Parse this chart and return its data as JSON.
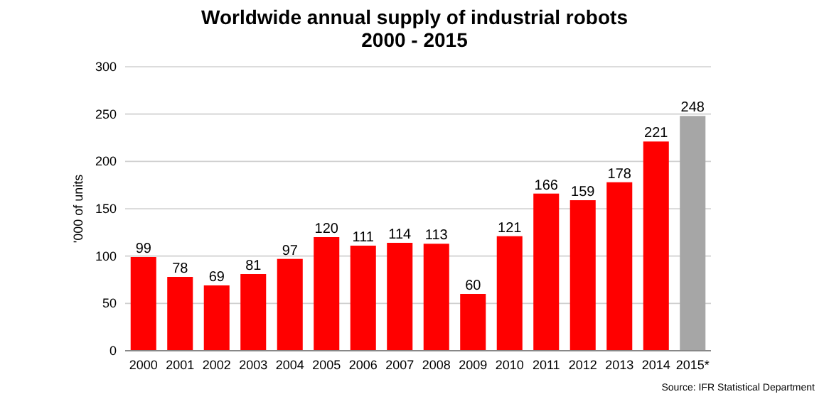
{
  "chart_data": {
    "type": "bar",
    "title": "Worldwide annual supply of industrial robots\n2000 - 2015",
    "categories": [
      "2000",
      "2001",
      "2002",
      "2003",
      "2004",
      "2005",
      "2006",
      "2007",
      "2008",
      "2009",
      "2010",
      "2011",
      "2012",
      "2013",
      "2014",
      "2015*"
    ],
    "values": [
      99,
      78,
      69,
      81,
      97,
      120,
      111,
      114,
      113,
      60,
      121,
      166,
      159,
      178,
      221,
      248
    ],
    "colors": [
      "#ff0000",
      "#ff0000",
      "#ff0000",
      "#ff0000",
      "#ff0000",
      "#ff0000",
      "#ff0000",
      "#ff0000",
      "#ff0000",
      "#ff0000",
      "#ff0000",
      "#ff0000",
      "#ff0000",
      "#ff0000",
      "#ff0000",
      "#a6a6a6"
    ],
    "ylabel": "'000 of units",
    "ylim": [
      0,
      300
    ],
    "yticks": [
      0,
      50,
      100,
      150,
      200,
      250,
      300
    ],
    "grid": "y",
    "data_labels": true,
    "annotations": [
      "Source: IFR Statistical Department"
    ]
  }
}
